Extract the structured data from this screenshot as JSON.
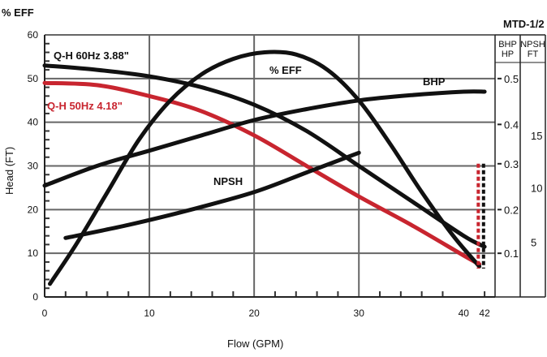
{
  "chart_data": {
    "type": "line",
    "title": "MTD-1/2",
    "top_left_label": "% EFF",
    "xlabel": "Flow (GPM)",
    "ylabel": "Head (FT)",
    "xlim": [
      0,
      43
    ],
    "ylim": [
      0,
      60
    ],
    "x_ticks": [
      0,
      10,
      20,
      30,
      40,
      42
    ],
    "y_ticks": [
      0,
      10,
      20,
      30,
      40,
      50,
      60
    ],
    "grid": true,
    "series": [
      {
        "name": "Q-H 60Hz 3.88\"",
        "color": "#111111",
        "points": [
          [
            0,
            53
          ],
          [
            5,
            52
          ],
          [
            10,
            50.5
          ],
          [
            15,
            48
          ],
          [
            20,
            44
          ],
          [
            25,
            38
          ],
          [
            30,
            30
          ],
          [
            35,
            22
          ],
          [
            40,
            14
          ],
          [
            42,
            11.5
          ]
        ]
      },
      {
        "name": "Q-H 50Hz 4.18\"",
        "color": "#c8252f",
        "points": [
          [
            0,
            49
          ],
          [
            5,
            48.5
          ],
          [
            10,
            46
          ],
          [
            15,
            42.5
          ],
          [
            20,
            37
          ],
          [
            25,
            30
          ],
          [
            30,
            23
          ],
          [
            35,
            16.5
          ],
          [
            40,
            9.5
          ],
          [
            41.5,
            7.5
          ]
        ]
      },
      {
        "name": "% EFF",
        "color": "#111111",
        "points": [
          [
            0.5,
            3
          ],
          [
            3,
            12
          ],
          [
            6,
            24
          ],
          [
            9,
            36
          ],
          [
            12,
            45
          ],
          [
            15,
            51
          ],
          [
            18,
            54.5
          ],
          [
            21,
            56
          ],
          [
            24,
            55.5
          ],
          [
            27,
            52
          ],
          [
            30,
            45
          ],
          [
            33,
            35
          ],
          [
            36,
            24
          ],
          [
            39,
            14
          ],
          [
            41.5,
            7
          ]
        ]
      },
      {
        "name": "BHP",
        "color": "#111111",
        "points": [
          [
            0,
            25.5
          ],
          [
            5,
            30
          ],
          [
            10,
            33.5
          ],
          [
            15,
            37
          ],
          [
            20,
            40.5
          ],
          [
            25,
            43
          ],
          [
            30,
            45
          ],
          [
            35,
            46.2
          ],
          [
            40,
            47
          ],
          [
            42,
            47
          ]
        ]
      },
      {
        "name": "NPSH",
        "color": "#111111",
        "points": [
          [
            2,
            13.5
          ],
          [
            8,
            16.5
          ],
          [
            14,
            20
          ],
          [
            20,
            24
          ],
          [
            25,
            28.5
          ],
          [
            30,
            33
          ]
        ]
      }
    ],
    "annotations": [
      {
        "text": "Q-H 60Hz 3.88\"",
        "color": "#111111"
      },
      {
        "text": "Q-H 50Hz 4.18\"",
        "color": "#c8252f"
      },
      {
        "text": "% EFF",
        "color": "#111111"
      },
      {
        "text": "BHP",
        "color": "#111111"
      },
      {
        "text": "NPSH",
        "color": "#111111"
      }
    ],
    "dashed_markers": [
      {
        "color": "#c8252f",
        "y_range": [
          6.5,
          30.5
        ],
        "x": 41.4
      },
      {
        "color": "#111111",
        "y_range": [
          6.5,
          30.5
        ],
        "x": 41.9
      }
    ],
    "right_axes": {
      "bhp_header": [
        "BHP",
        "HP"
      ],
      "npsh_header": [
        "NPSH",
        "FT"
      ],
      "bhp_ticks": [
        {
          "label": "0.1",
          "head": 10
        },
        {
          "label": "0.2",
          "head": 20
        },
        {
          "label": "0.3",
          "head": 30.5
        },
        {
          "label": "0.4",
          "head": 39.5
        },
        {
          "label": "0.5",
          "head": 50
        }
      ],
      "npsh_ticks": [
        {
          "label": "5",
          "head": 12.5
        },
        {
          "label": "10",
          "head": 25
        },
        {
          "label": "15",
          "head": 37
        }
      ]
    }
  }
}
